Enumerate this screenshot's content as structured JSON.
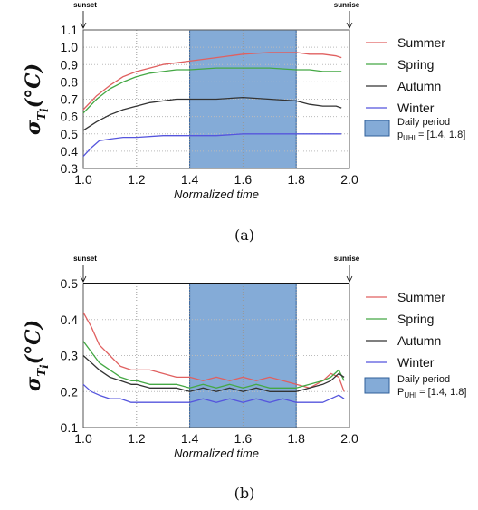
{
  "chart_data": [
    {
      "type": "line",
      "caption": "(a)",
      "ylabel": {
        "main": "σ",
        "sub": "T",
        "subsub": "i",
        "unit": "(°C)"
      },
      "xlabel": "Normalized time",
      "xlim": [
        1.0,
        2.0
      ],
      "ylim": [
        0.3,
        1.1
      ],
      "xticks": [
        "1.0",
        "1.2",
        "1.4",
        "1.6",
        "1.8",
        "2.0"
      ],
      "xtick_values": [
        1.0,
        1.2,
        1.4,
        1.6,
        1.8,
        2.0
      ],
      "yticks": [
        "0.3",
        "0.4",
        "0.5",
        "0.6",
        "0.7",
        "0.8",
        "0.9",
        "1.0",
        "1.1"
      ],
      "ytick_values": [
        0.3,
        0.4,
        0.5,
        0.6,
        0.7,
        0.8,
        0.9,
        1.0,
        1.1
      ],
      "markers": [
        {
          "label": "sunset",
          "x": 1.0
        },
        {
          "label": "sunrise",
          "x": 2.0
        }
      ],
      "shaded_region": {
        "x0": 1.4,
        "x1": 1.8,
        "color": "#5b8fc9",
        "label_line1": "Daily period",
        "label_line2": "p",
        "label_sub": "UHI",
        "label_rest": " = [1.4, 1.8]"
      },
      "series": [
        {
          "name": "Summer",
          "color": "#e06060",
          "x": [
            1.0,
            1.05,
            1.1,
            1.15,
            1.2,
            1.25,
            1.3,
            1.35,
            1.4,
            1.5,
            1.6,
            1.7,
            1.8,
            1.85,
            1.9,
            1.95,
            1.97
          ],
          "y": [
            0.64,
            0.72,
            0.78,
            0.83,
            0.86,
            0.88,
            0.9,
            0.91,
            0.92,
            0.94,
            0.96,
            0.97,
            0.97,
            0.96,
            0.96,
            0.95,
            0.94
          ]
        },
        {
          "name": "Spring",
          "color": "#44a844",
          "x": [
            1.0,
            1.05,
            1.1,
            1.15,
            1.2,
            1.25,
            1.3,
            1.35,
            1.4,
            1.5,
            1.6,
            1.7,
            1.8,
            1.85,
            1.9,
            1.95,
            1.97
          ],
          "y": [
            0.62,
            0.7,
            0.76,
            0.8,
            0.83,
            0.85,
            0.86,
            0.87,
            0.87,
            0.88,
            0.88,
            0.88,
            0.87,
            0.87,
            0.86,
            0.86,
            0.86
          ]
        },
        {
          "name": "Autumn",
          "color": "#333333",
          "x": [
            1.0,
            1.05,
            1.1,
            1.15,
            1.2,
            1.25,
            1.3,
            1.35,
            1.4,
            1.5,
            1.6,
            1.7,
            1.8,
            1.85,
            1.9,
            1.95,
            1.97
          ],
          "y": [
            0.52,
            0.57,
            0.61,
            0.64,
            0.66,
            0.68,
            0.69,
            0.7,
            0.7,
            0.7,
            0.71,
            0.7,
            0.69,
            0.67,
            0.66,
            0.66,
            0.65
          ]
        },
        {
          "name": "Winter",
          "color": "#5555dd",
          "x": [
            1.0,
            1.03,
            1.06,
            1.1,
            1.15,
            1.2,
            1.3,
            1.4,
            1.5,
            1.6,
            1.7,
            1.8,
            1.9,
            1.97
          ],
          "y": [
            0.37,
            0.42,
            0.46,
            0.47,
            0.48,
            0.48,
            0.49,
            0.49,
            0.49,
            0.5,
            0.5,
            0.5,
            0.5,
            0.5
          ]
        }
      ]
    },
    {
      "type": "line",
      "caption": "(b)",
      "ylabel": {
        "main": "σ",
        "sub": "T",
        "subsub": "i",
        "unit": "(°C)"
      },
      "xlabel": "Normalized time",
      "xlim": [
        1.0,
        2.0
      ],
      "ylim": [
        0.1,
        0.5
      ],
      "xticks": [
        "1.0",
        "1.2",
        "1.4",
        "1.6",
        "1.8",
        "2.0"
      ],
      "xtick_values": [
        1.0,
        1.2,
        1.4,
        1.6,
        1.8,
        2.0
      ],
      "yticks": [
        "0.1",
        "0.2",
        "0.3",
        "0.4",
        "0.5"
      ],
      "ytick_values": [
        0.1,
        0.2,
        0.3,
        0.4,
        0.5
      ],
      "markers": [
        {
          "label": "sunset",
          "x": 1.0
        },
        {
          "label": "sunrise",
          "x": 2.0
        }
      ],
      "shaded_region": {
        "x0": 1.4,
        "x1": 1.8,
        "color": "#5b8fc9",
        "label_line1": "Daily period",
        "label_line2": "P",
        "label_sub": "UHI",
        "label_rest": " = [1.4, 1.8]"
      },
      "series": [
        {
          "name": "Summer",
          "color": "#e06060",
          "x": [
            1.0,
            1.03,
            1.06,
            1.1,
            1.14,
            1.18,
            1.2,
            1.25,
            1.3,
            1.35,
            1.4,
            1.45,
            1.5,
            1.55,
            1.6,
            1.65,
            1.7,
            1.75,
            1.8,
            1.85,
            1.9,
            1.93,
            1.96,
            1.98
          ],
          "y": [
            0.42,
            0.38,
            0.33,
            0.3,
            0.27,
            0.26,
            0.26,
            0.26,
            0.25,
            0.24,
            0.24,
            0.23,
            0.24,
            0.23,
            0.24,
            0.23,
            0.24,
            0.23,
            0.22,
            0.21,
            0.23,
            0.25,
            0.24,
            0.2
          ]
        },
        {
          "name": "Spring",
          "color": "#44a844",
          "x": [
            1.0,
            1.03,
            1.06,
            1.1,
            1.14,
            1.18,
            1.2,
            1.25,
            1.3,
            1.35,
            1.4,
            1.45,
            1.5,
            1.55,
            1.6,
            1.65,
            1.7,
            1.75,
            1.8,
            1.85,
            1.9,
            1.93,
            1.96,
            1.98
          ],
          "y": [
            0.34,
            0.31,
            0.28,
            0.26,
            0.24,
            0.23,
            0.23,
            0.22,
            0.22,
            0.22,
            0.21,
            0.22,
            0.21,
            0.22,
            0.21,
            0.22,
            0.21,
            0.21,
            0.21,
            0.22,
            0.23,
            0.24,
            0.26,
            0.23
          ]
        },
        {
          "name": "Autumn",
          "color": "#333333",
          "x": [
            1.0,
            1.03,
            1.06,
            1.1,
            1.14,
            1.18,
            1.2,
            1.25,
            1.3,
            1.35,
            1.4,
            1.45,
            1.5,
            1.55,
            1.6,
            1.65,
            1.7,
            1.75,
            1.8,
            1.85,
            1.9,
            1.93,
            1.96,
            1.98
          ],
          "y": [
            0.3,
            0.28,
            0.26,
            0.24,
            0.23,
            0.22,
            0.22,
            0.21,
            0.21,
            0.21,
            0.2,
            0.21,
            0.2,
            0.21,
            0.2,
            0.21,
            0.2,
            0.2,
            0.2,
            0.21,
            0.22,
            0.23,
            0.25,
            0.24
          ]
        },
        {
          "name": "Winter",
          "color": "#5555dd",
          "x": [
            1.0,
            1.03,
            1.06,
            1.1,
            1.14,
            1.18,
            1.2,
            1.25,
            1.3,
            1.35,
            1.4,
            1.45,
            1.5,
            1.55,
            1.6,
            1.65,
            1.7,
            1.75,
            1.8,
            1.85,
            1.9,
            1.93,
            1.96,
            1.98
          ],
          "y": [
            0.22,
            0.2,
            0.19,
            0.18,
            0.18,
            0.17,
            0.17,
            0.17,
            0.17,
            0.17,
            0.17,
            0.18,
            0.17,
            0.18,
            0.17,
            0.18,
            0.17,
            0.18,
            0.17,
            0.17,
            0.17,
            0.18,
            0.19,
            0.18
          ]
        }
      ]
    }
  ]
}
